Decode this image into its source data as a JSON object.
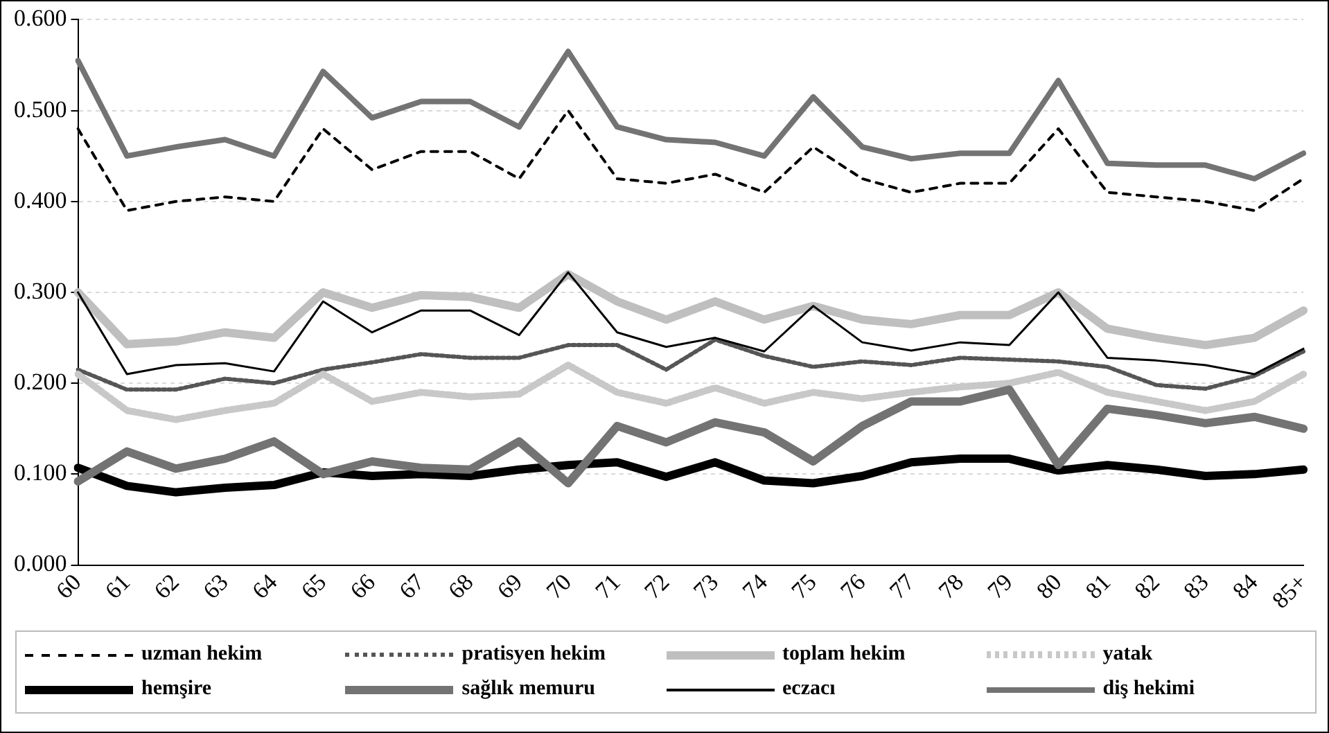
{
  "chart_data": {
    "type": "line",
    "categories": [
      "60",
      "61",
      "62",
      "63",
      "64",
      "65",
      "66",
      "67",
      "68",
      "69",
      "70",
      "71",
      "72",
      "73",
      "74",
      "75",
      "76",
      "77",
      "78",
      "79",
      "80",
      "81",
      "82",
      "83",
      "84",
      "85+"
    ],
    "ylim": [
      0,
      0.6
    ],
    "yticks": [
      {
        "value": 0,
        "label": "0.000"
      },
      {
        "value": 0.1,
        "label": "0.100"
      },
      {
        "value": 0.2,
        "label": "0.200"
      },
      {
        "value": 0.3,
        "label": "0.300"
      },
      {
        "value": 0.4,
        "label": "0.400"
      },
      {
        "value": 0.5,
        "label": "0.500"
      },
      {
        "value": 0.6,
        "label": "0.600"
      }
    ],
    "grid": "y",
    "legend": "bottom",
    "marker": "none",
    "series": [
      {
        "name": "uzman hekim",
        "color": "#000000",
        "line_style": "dashed",
        "values": [
          0.48,
          0.39,
          0.4,
          0.405,
          0.4,
          0.48,
          0.435,
          0.455,
          0.455,
          0.425,
          0.5,
          0.425,
          0.42,
          0.43,
          0.41,
          0.46,
          0.425,
          0.41,
          0.42,
          0.42,
          0.48,
          0.41,
          0.405,
          0.4,
          0.39,
          0.425
        ]
      },
      {
        "name": "pratisyen hekim",
        "color": "#555555",
        "line_style": "dotted",
        "values": [
          0.215,
          0.193,
          0.193,
          0.205,
          0.2,
          0.215,
          0.223,
          0.232,
          0.228,
          0.228,
          0.242,
          0.242,
          0.215,
          0.248,
          0.23,
          0.218,
          0.224,
          0.22,
          0.228,
          0.226,
          0.224,
          0.218,
          0.198,
          0.194,
          0.208,
          0.235
        ]
      },
      {
        "name": "toplam hekim",
        "color": "#bfbfbf",
        "values": [
          0.3,
          0.243,
          0.246,
          0.256,
          0.25,
          0.3,
          0.283,
          0.297,
          0.295,
          0.283,
          0.32,
          0.29,
          0.27,
          0.29,
          0.27,
          0.285,
          0.27,
          0.265,
          0.275,
          0.275,
          0.3,
          0.26,
          0.25,
          0.242,
          0.25,
          0.28
        ]
      },
      {
        "name": "yatak",
        "color": "#c8c8c8",
        "line_style": "dotted",
        "values": [
          0.21,
          0.17,
          0.16,
          0.17,
          0.178,
          0.21,
          0.18,
          0.19,
          0.185,
          0.188,
          0.22,
          0.19,
          0.178,
          0.195,
          0.178,
          0.19,
          0.183,
          0.19,
          0.196,
          0.2,
          0.212,
          0.19,
          0.18,
          0.17,
          0.18,
          0.21
        ]
      },
      {
        "name": "hemşire",
        "color": "#000000",
        "values": [
          0.107,
          0.087,
          0.08,
          0.085,
          0.088,
          0.102,
          0.098,
          0.1,
          0.098,
          0.105,
          0.11,
          0.113,
          0.097,
          0.113,
          0.093,
          0.09,
          0.098,
          0.113,
          0.117,
          0.117,
          0.104,
          0.11,
          0.105,
          0.098,
          0.1,
          0.105
        ]
      },
      {
        "name": "sağlık memuru",
        "color": "#737373",
        "values": [
          0.092,
          0.125,
          0.106,
          0.117,
          0.136,
          0.1,
          0.114,
          0.107,
          0.105,
          0.136,
          0.09,
          0.153,
          0.135,
          0.157,
          0.146,
          0.114,
          0.153,
          0.18,
          0.18,
          0.193,
          0.11,
          0.172,
          0.165,
          0.156,
          0.163,
          0.15
        ]
      },
      {
        "name": "eczacı",
        "color": "#000000",
        "values": [
          0.3,
          0.21,
          0.22,
          0.222,
          0.213,
          0.29,
          0.256,
          0.28,
          0.28,
          0.253,
          0.322,
          0.256,
          0.24,
          0.25,
          0.235,
          0.285,
          0.245,
          0.236,
          0.245,
          0.242,
          0.3,
          0.228,
          0.225,
          0.22,
          0.21,
          0.238
        ]
      },
      {
        "name": "diş hekimi",
        "color": "#737373",
        "values": [
          0.555,
          0.45,
          0.46,
          0.468,
          0.45,
          0.543,
          0.492,
          0.51,
          0.51,
          0.482,
          0.565,
          0.482,
          0.468,
          0.465,
          0.45,
          0.515,
          0.46,
          0.447,
          0.453,
          0.453,
          0.533,
          0.442,
          0.44,
          0.44,
          0.425,
          0.453
        ]
      }
    ]
  }
}
